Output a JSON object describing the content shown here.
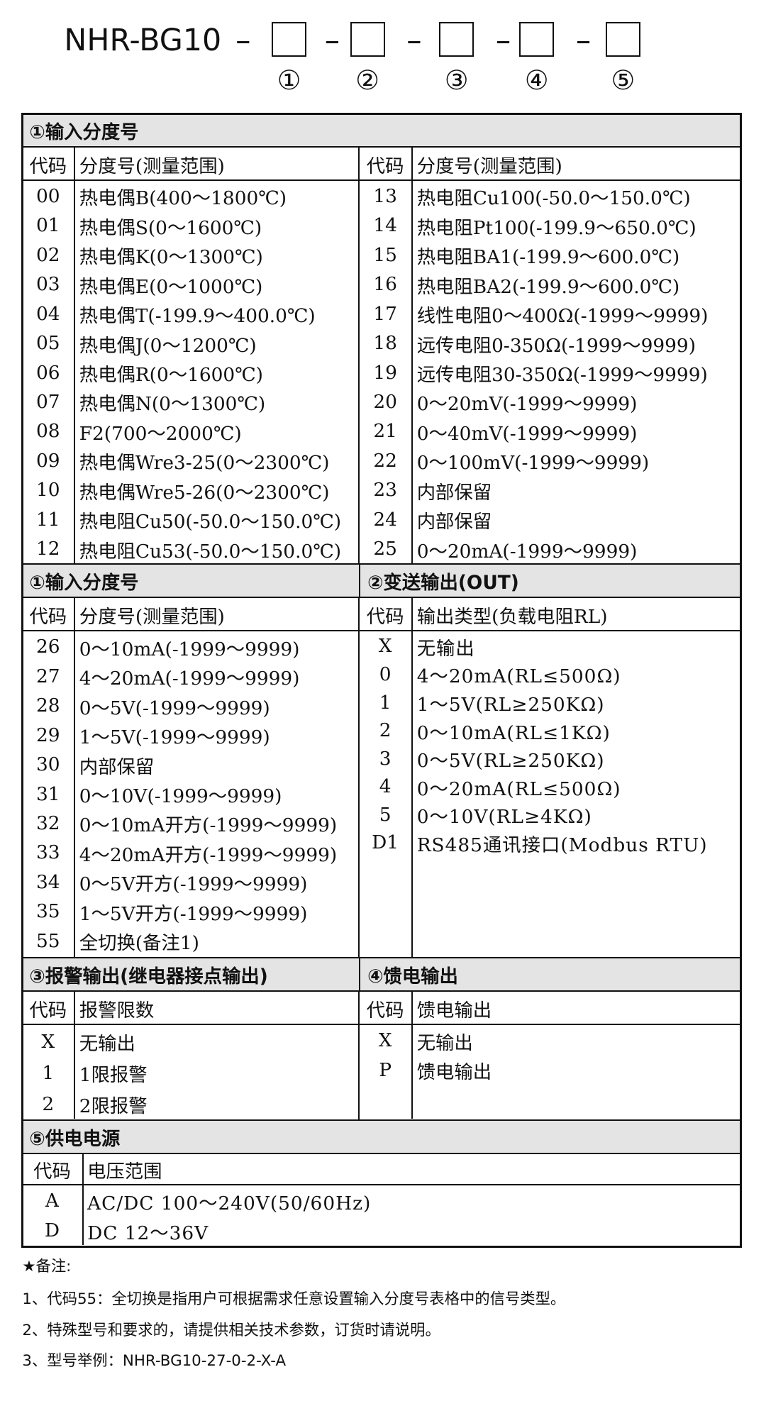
{
  "header": {
    "model": "NHR-BG10",
    "separator": "–",
    "positions": [
      "①",
      "②",
      "③",
      "④",
      "⑤"
    ]
  },
  "blocks": [
    {
      "title": "①输入分度号",
      "panels": [
        {
          "columns": [
            "代码",
            "分度号(测量范围)"
          ],
          "rows": [
            [
              "00",
              "热电偶B(400～1800℃)"
            ],
            [
              "01",
              "热电偶S(0～1600℃)"
            ],
            [
              "02",
              "热电偶K(0～1300℃)"
            ],
            [
              "03",
              "热电偶E(0～1000℃)"
            ],
            [
              "04",
              "热电偶T(-199.9～400.0℃)"
            ],
            [
              "05",
              "热电偶J(0～1200℃)"
            ],
            [
              "06",
              "热电偶R(0～1600℃)"
            ],
            [
              "07",
              "热电偶N(0～1300℃)"
            ],
            [
              "08",
              "F2(700～2000℃)"
            ],
            [
              "09",
              "热电偶Wre3-25(0～2300℃)"
            ],
            [
              "10",
              "热电偶Wre5-26(0～2300℃)"
            ],
            [
              "11",
              "热电阻Cu50(-50.0～150.0℃)"
            ],
            [
              "12",
              "热电阻Cu53(-50.0～150.0℃)"
            ]
          ]
        },
        {
          "columns": [
            "代码",
            "分度号(测量范围)"
          ],
          "rows": [
            [
              "13",
              "热电阻Cu100(-50.0～150.0℃)"
            ],
            [
              "14",
              "热电阻Pt100(-199.9～650.0℃)"
            ],
            [
              "15",
              "热电阻BA1(-199.9～600.0℃)"
            ],
            [
              "16",
              "热电阻BA2(-199.9～600.0℃)"
            ],
            [
              "17",
              "线性电阻0～400Ω(-1999～9999)"
            ],
            [
              "18",
              "远传电阻0-350Ω(-1999～9999)"
            ],
            [
              "19",
              "远传电阻30-350Ω(-1999～9999)"
            ],
            [
              "20",
              "0～20mV(-1999～9999)"
            ],
            [
              "21",
              "0～40mV(-1999～9999)"
            ],
            [
              "22",
              "0～100mV(-1999～9999)"
            ],
            [
              "23",
              "内部保留"
            ],
            [
              "24",
              "内部保留"
            ],
            [
              "25",
              "0～20mA(-1999～9999)"
            ]
          ]
        }
      ]
    },
    {
      "panels": [
        {
          "title": "①输入分度号",
          "columns": [
            "代码",
            "分度号(测量范围)"
          ],
          "rows": [
            [
              "26",
              "0～10mA(-1999～9999)"
            ],
            [
              "27",
              "4～20mA(-1999～9999)"
            ],
            [
              "28",
              "0～5V(-1999～9999)"
            ],
            [
              "29",
              "1～5V(-1999～9999)"
            ],
            [
              "30",
              "内部保留"
            ],
            [
              "31",
              "0～10V(-1999～9999)"
            ],
            [
              "32",
              "0～10mA开方(-1999～9999)"
            ],
            [
              "33",
              "4～20mA开方(-1999～9999)"
            ],
            [
              "34",
              "0～5V开方(-1999～9999)"
            ],
            [
              "35",
              "1～5V开方(-1999～9999)"
            ],
            [
              "55",
              "全切换(备注1)"
            ]
          ]
        },
        {
          "title": "②变送输出(OUT)",
          "columns": [
            "代码",
            "输出类型(负载电阻RL)"
          ],
          "rows": [
            [
              "X",
              "无输出"
            ],
            [
              "0",
              "4～20mA(RL≤500Ω)"
            ],
            [
              "1",
              "1～5V(RL≥250KΩ)"
            ],
            [
              "2",
              "0～10mA(RL≤1KΩ)"
            ],
            [
              "3",
              "0～5V(RL≥250KΩ)"
            ],
            [
              "4",
              "0～20mA(RL≤500Ω)"
            ],
            [
              "5",
              "0～10V(RL≥4KΩ)"
            ],
            [
              "D1",
              "RS485通讯接口(Modbus RTU)"
            ]
          ]
        }
      ]
    },
    {
      "panels": [
        {
          "title": "③报警输出(继电器接点输出)",
          "columns": [
            "代码",
            "报警限数"
          ],
          "rows": [
            [
              "X",
              "无输出"
            ],
            [
              "1",
              "1限报警"
            ],
            [
              "2",
              "2限报警"
            ]
          ]
        },
        {
          "title": "④馈电输出",
          "columns": [
            "代码",
            "馈电输出"
          ],
          "rows": [
            [
              "X",
              "无输出"
            ],
            [
              "P",
              "馈电输出"
            ]
          ]
        }
      ]
    },
    {
      "title": "⑤供电电源",
      "panels": [
        {
          "columns": [
            "代码",
            "电压范围"
          ],
          "rows": [
            [
              "A",
              "AC/DC 100～240V(50/60Hz)"
            ],
            [
              "D",
              "DC 12～36V"
            ]
          ]
        }
      ]
    }
  ],
  "notes": {
    "title": "★备注:",
    "items": [
      "1、代码55：全切换是指用户可根据需求任意设置输入分度号表格中的信号类型。",
      "2、特殊型号和要求的，请提供相关技术参数，订货时请说明。",
      "3、型号举例：NHR-BG10-27-0-2-X-A"
    ]
  }
}
